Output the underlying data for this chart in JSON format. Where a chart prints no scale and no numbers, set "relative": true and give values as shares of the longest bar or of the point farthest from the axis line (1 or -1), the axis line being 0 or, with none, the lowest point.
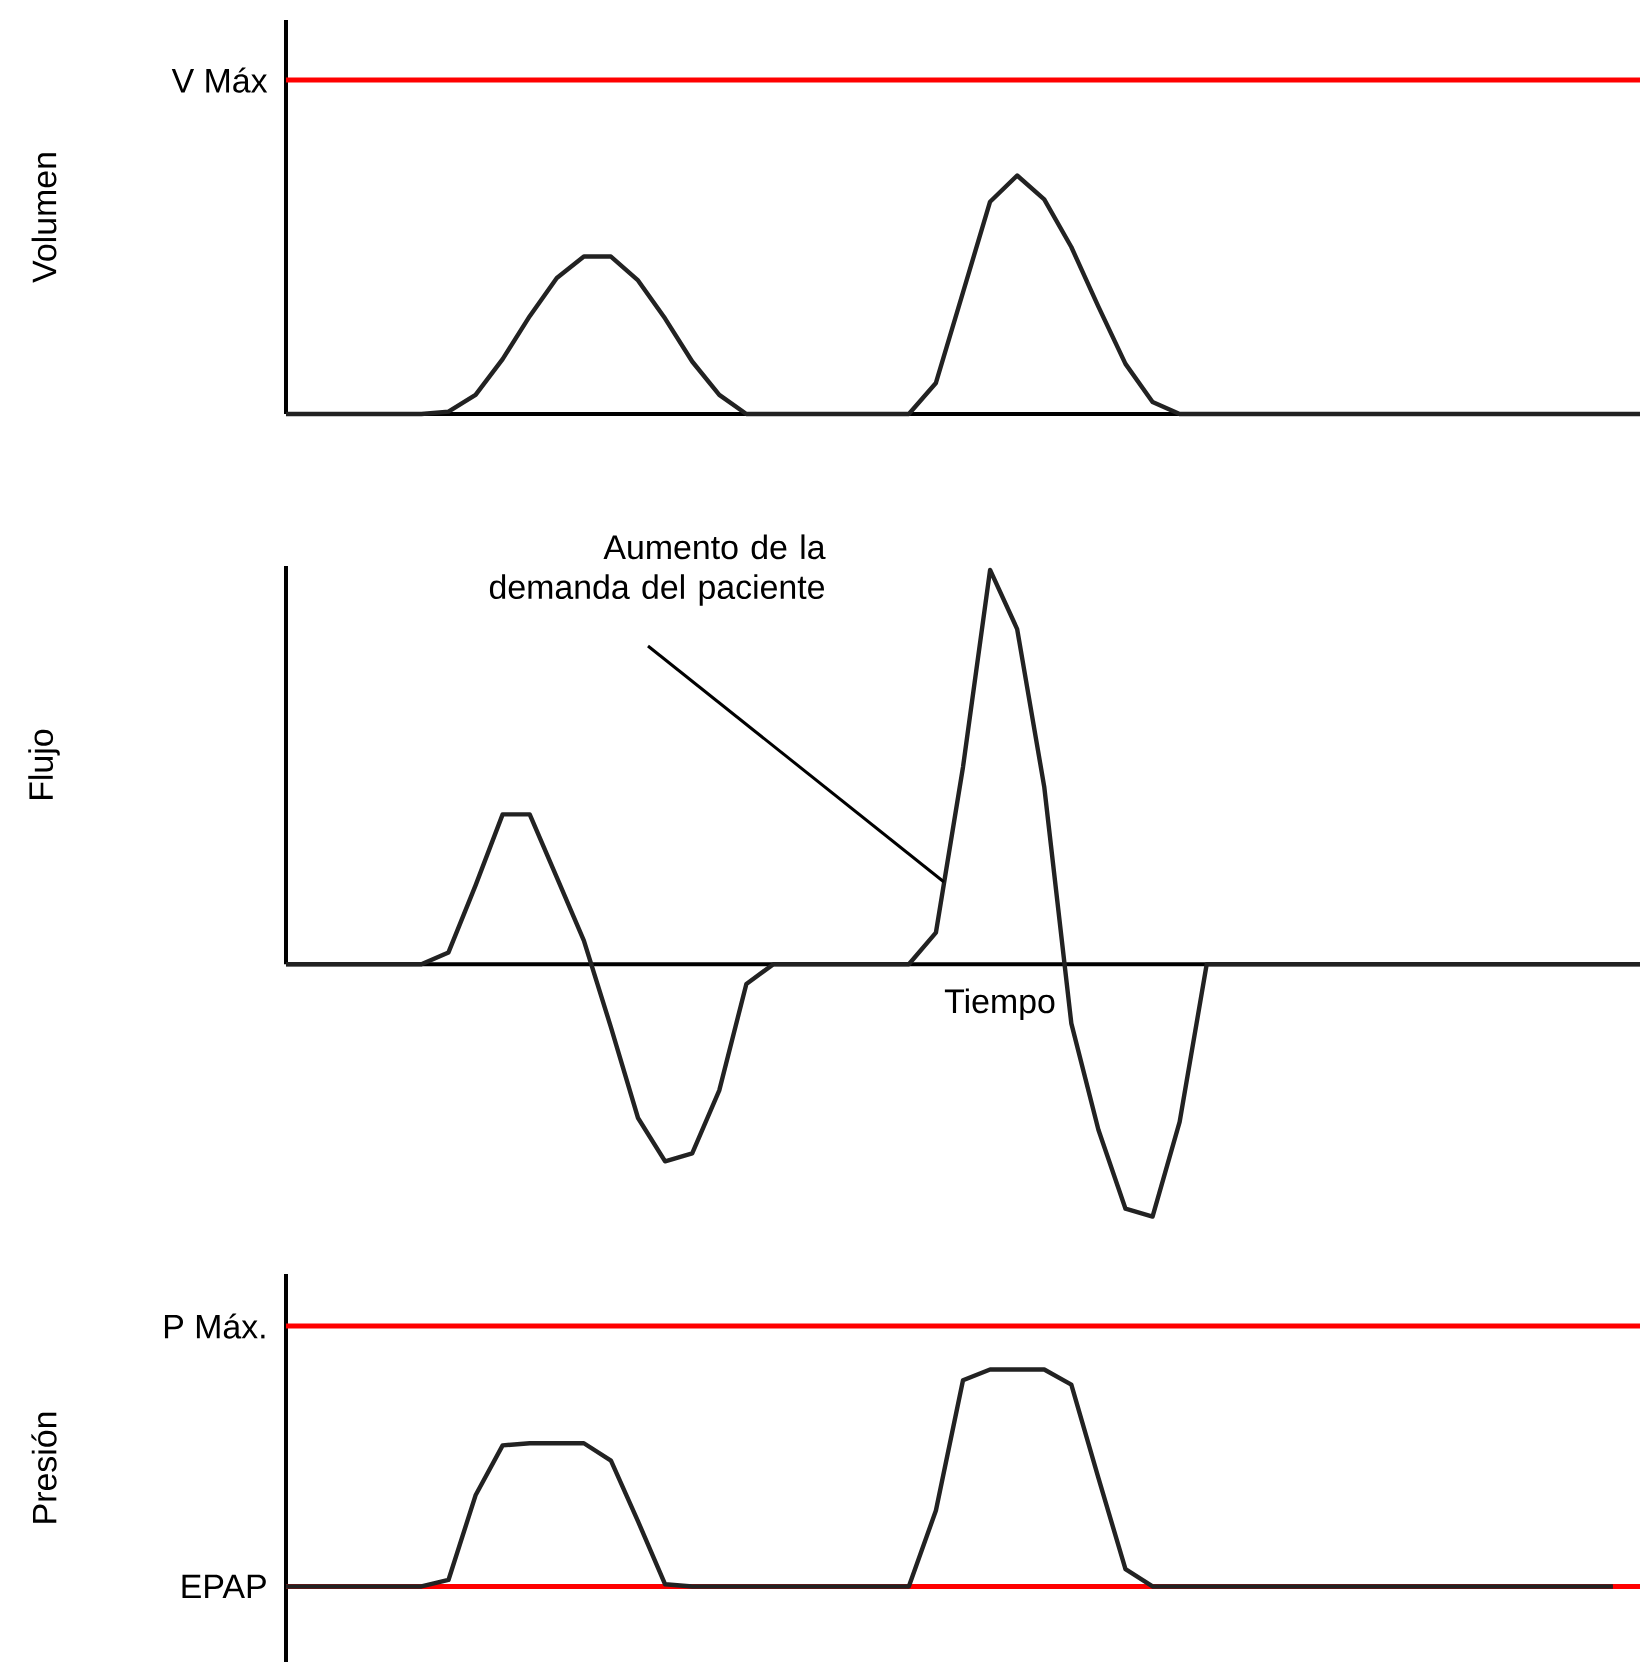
{
  "chart_data": [
    {
      "type": "line",
      "relative": true,
      "ylabel": "Volumen",
      "categories": [
        null,
        null,
        null,
        null,
        null,
        null,
        null,
        null,
        null,
        null,
        null,
        null,
        null,
        null,
        null,
        null,
        null,
        null,
        null,
        null,
        null,
        null,
        null,
        null,
        null,
        null,
        null,
        null,
        null,
        null,
        null,
        null,
        null,
        null,
        null,
        null,
        null,
        null,
        null,
        null,
        null,
        null,
        null,
        null,
        null,
        null,
        null,
        null,
        null,
        null,
        null
      ],
      "series": [
        {
          "color": "#222222",
          "values": [
            0,
            0,
            0,
            0,
            0,
            0,
            0.01,
            0.08,
            0.23,
            0.41,
            0.57,
            0.66,
            0.66,
            0.56,
            0.4,
            0.22,
            0.08,
            0,
            0,
            0,
            0,
            0,
            0,
            0,
            0.13,
            0.51,
            0.89,
            1,
            0.9,
            0.7,
            0.45,
            0.21,
            0.05,
            0,
            0,
            0,
            0,
            0,
            0,
            0,
            0,
            0,
            0,
            0,
            0,
            0,
            0,
            0,
            0,
            0,
            0
          ]
        }
      ],
      "ref_lines": [
        {
          "axis": "y",
          "value": 1.4,
          "label": "V Máx",
          "color": "#ff0000"
        }
      ]
    },
    {
      "type": "line",
      "relative": true,
      "ylabel": "Flujo",
      "xlabel": "Tiempo",
      "annotations": [
        "Aumento de la demanda del paciente"
      ],
      "categories": [
        null,
        null,
        null,
        null,
        null,
        null,
        null,
        null,
        null,
        null,
        null,
        null,
        null,
        null,
        null,
        null,
        null,
        null,
        null,
        null,
        null,
        null,
        null,
        null,
        null,
        null,
        null,
        null,
        null,
        null,
        null,
        null,
        null,
        null,
        null,
        null,
        null,
        null,
        null,
        null,
        null,
        null,
        null,
        null,
        null,
        null,
        null,
        null,
        null,
        null,
        null
      ],
      "series": [
        {
          "color": "#222222",
          "values": [
            0,
            0,
            0,
            0,
            0,
            0,
            0.03,
            0.2,
            0.38,
            0.38,
            0.22,
            0.06,
            -0.16,
            -0.39,
            -0.5,
            -0.48,
            -0.32,
            -0.05,
            0,
            0,
            0,
            0,
            0,
            0,
            0.08,
            0.5,
            1,
            0.85,
            0.45,
            -0.15,
            -0.42,
            -0.62,
            -0.64,
            -0.4,
            0,
            0,
            0,
            0,
            0,
            0,
            0,
            0,
            0,
            0,
            0,
            0,
            0,
            0,
            0,
            0,
            0
          ]
        }
      ]
    },
    {
      "type": "line",
      "relative": true,
      "ylabel": "Presión",
      "categories": [
        null,
        null,
        null,
        null,
        null,
        null,
        null,
        null,
        null,
        null,
        null,
        null,
        null,
        null,
        null,
        null,
        null,
        null,
        null,
        null,
        null,
        null,
        null,
        null,
        null,
        null,
        null,
        null,
        null,
        null,
        null,
        null,
        null,
        null,
        null,
        null,
        null,
        null,
        null,
        null,
        null,
        null,
        null,
        null,
        null,
        null,
        null,
        null,
        null,
        null,
        null
      ],
      "series": [
        {
          "color": "#222222",
          "values": [
            0,
            0,
            0,
            0,
            0,
            0,
            0.03,
            0.42,
            0.65,
            0.66,
            0.66,
            0.66,
            0.58,
            0.3,
            0.01,
            0,
            0,
            0,
            0,
            0,
            0,
            0,
            0,
            0,
            0.35,
            0.95,
            1,
            1,
            1,
            0.93,
            0.5,
            0.08,
            0,
            0,
            0,
            0,
            0,
            0,
            0,
            0,
            0,
            0,
            0,
            0,
            0,
            0,
            0,
            0,
            0,
            0,
            null
          ]
        }
      ],
      "ref_lines": [
        {
          "axis": "y",
          "value": 1.2,
          "label": "P Máx.",
          "color": "#ff0000"
        },
        {
          "axis": "y",
          "value": 0,
          "label": "EPAP",
          "color": "#ff0000"
        }
      ]
    }
  ]
}
